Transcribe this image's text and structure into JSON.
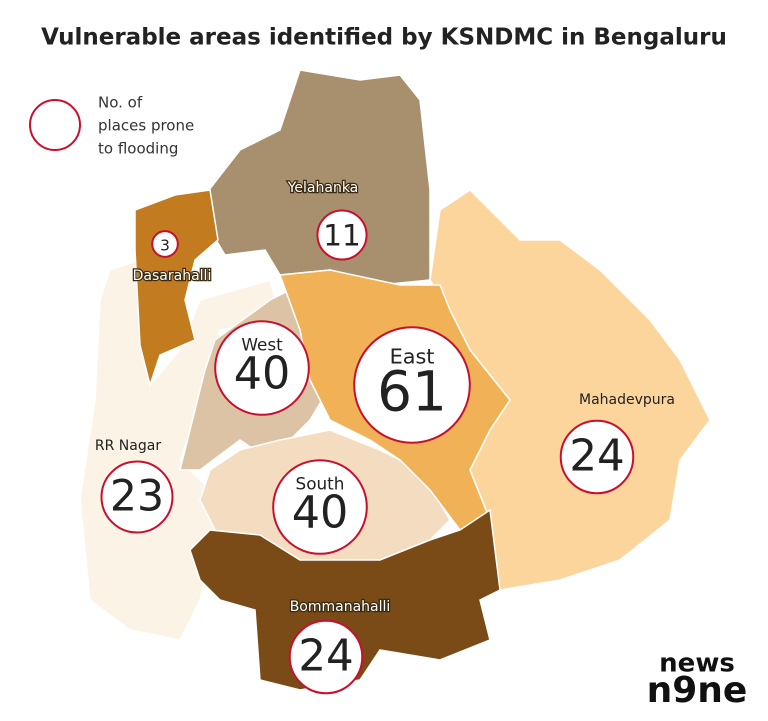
{
  "map": {
    "title": "Vulnerable areas identified by KSNDMC in Bengaluru",
    "legend": [
      "No. of",
      "places prone",
      "to flooding"
    ],
    "zones": [
      {
        "name": "Yelahanka",
        "value": 11,
        "color": "#a88f6e"
      },
      {
        "name": "Dasarahalli",
        "value": 3,
        "color": "#c27b1f"
      },
      {
        "name": "RR Nagar",
        "value": 23,
        "color": "#fbf3e6"
      },
      {
        "name": "West",
        "value": 40,
        "color": "#dcc3a5"
      },
      {
        "name": "South",
        "value": 40,
        "color": "#f3dcc0"
      },
      {
        "name": "East",
        "value": 61,
        "color": "#f1b257"
      },
      {
        "name": "Mahadevpura",
        "value": 24,
        "color": "#fcd59c"
      },
      {
        "name": "Bommanahalli",
        "value": 24,
        "color": "#7a4b17"
      }
    ],
    "logo": [
      "news",
      "n9ne"
    ]
  }
}
